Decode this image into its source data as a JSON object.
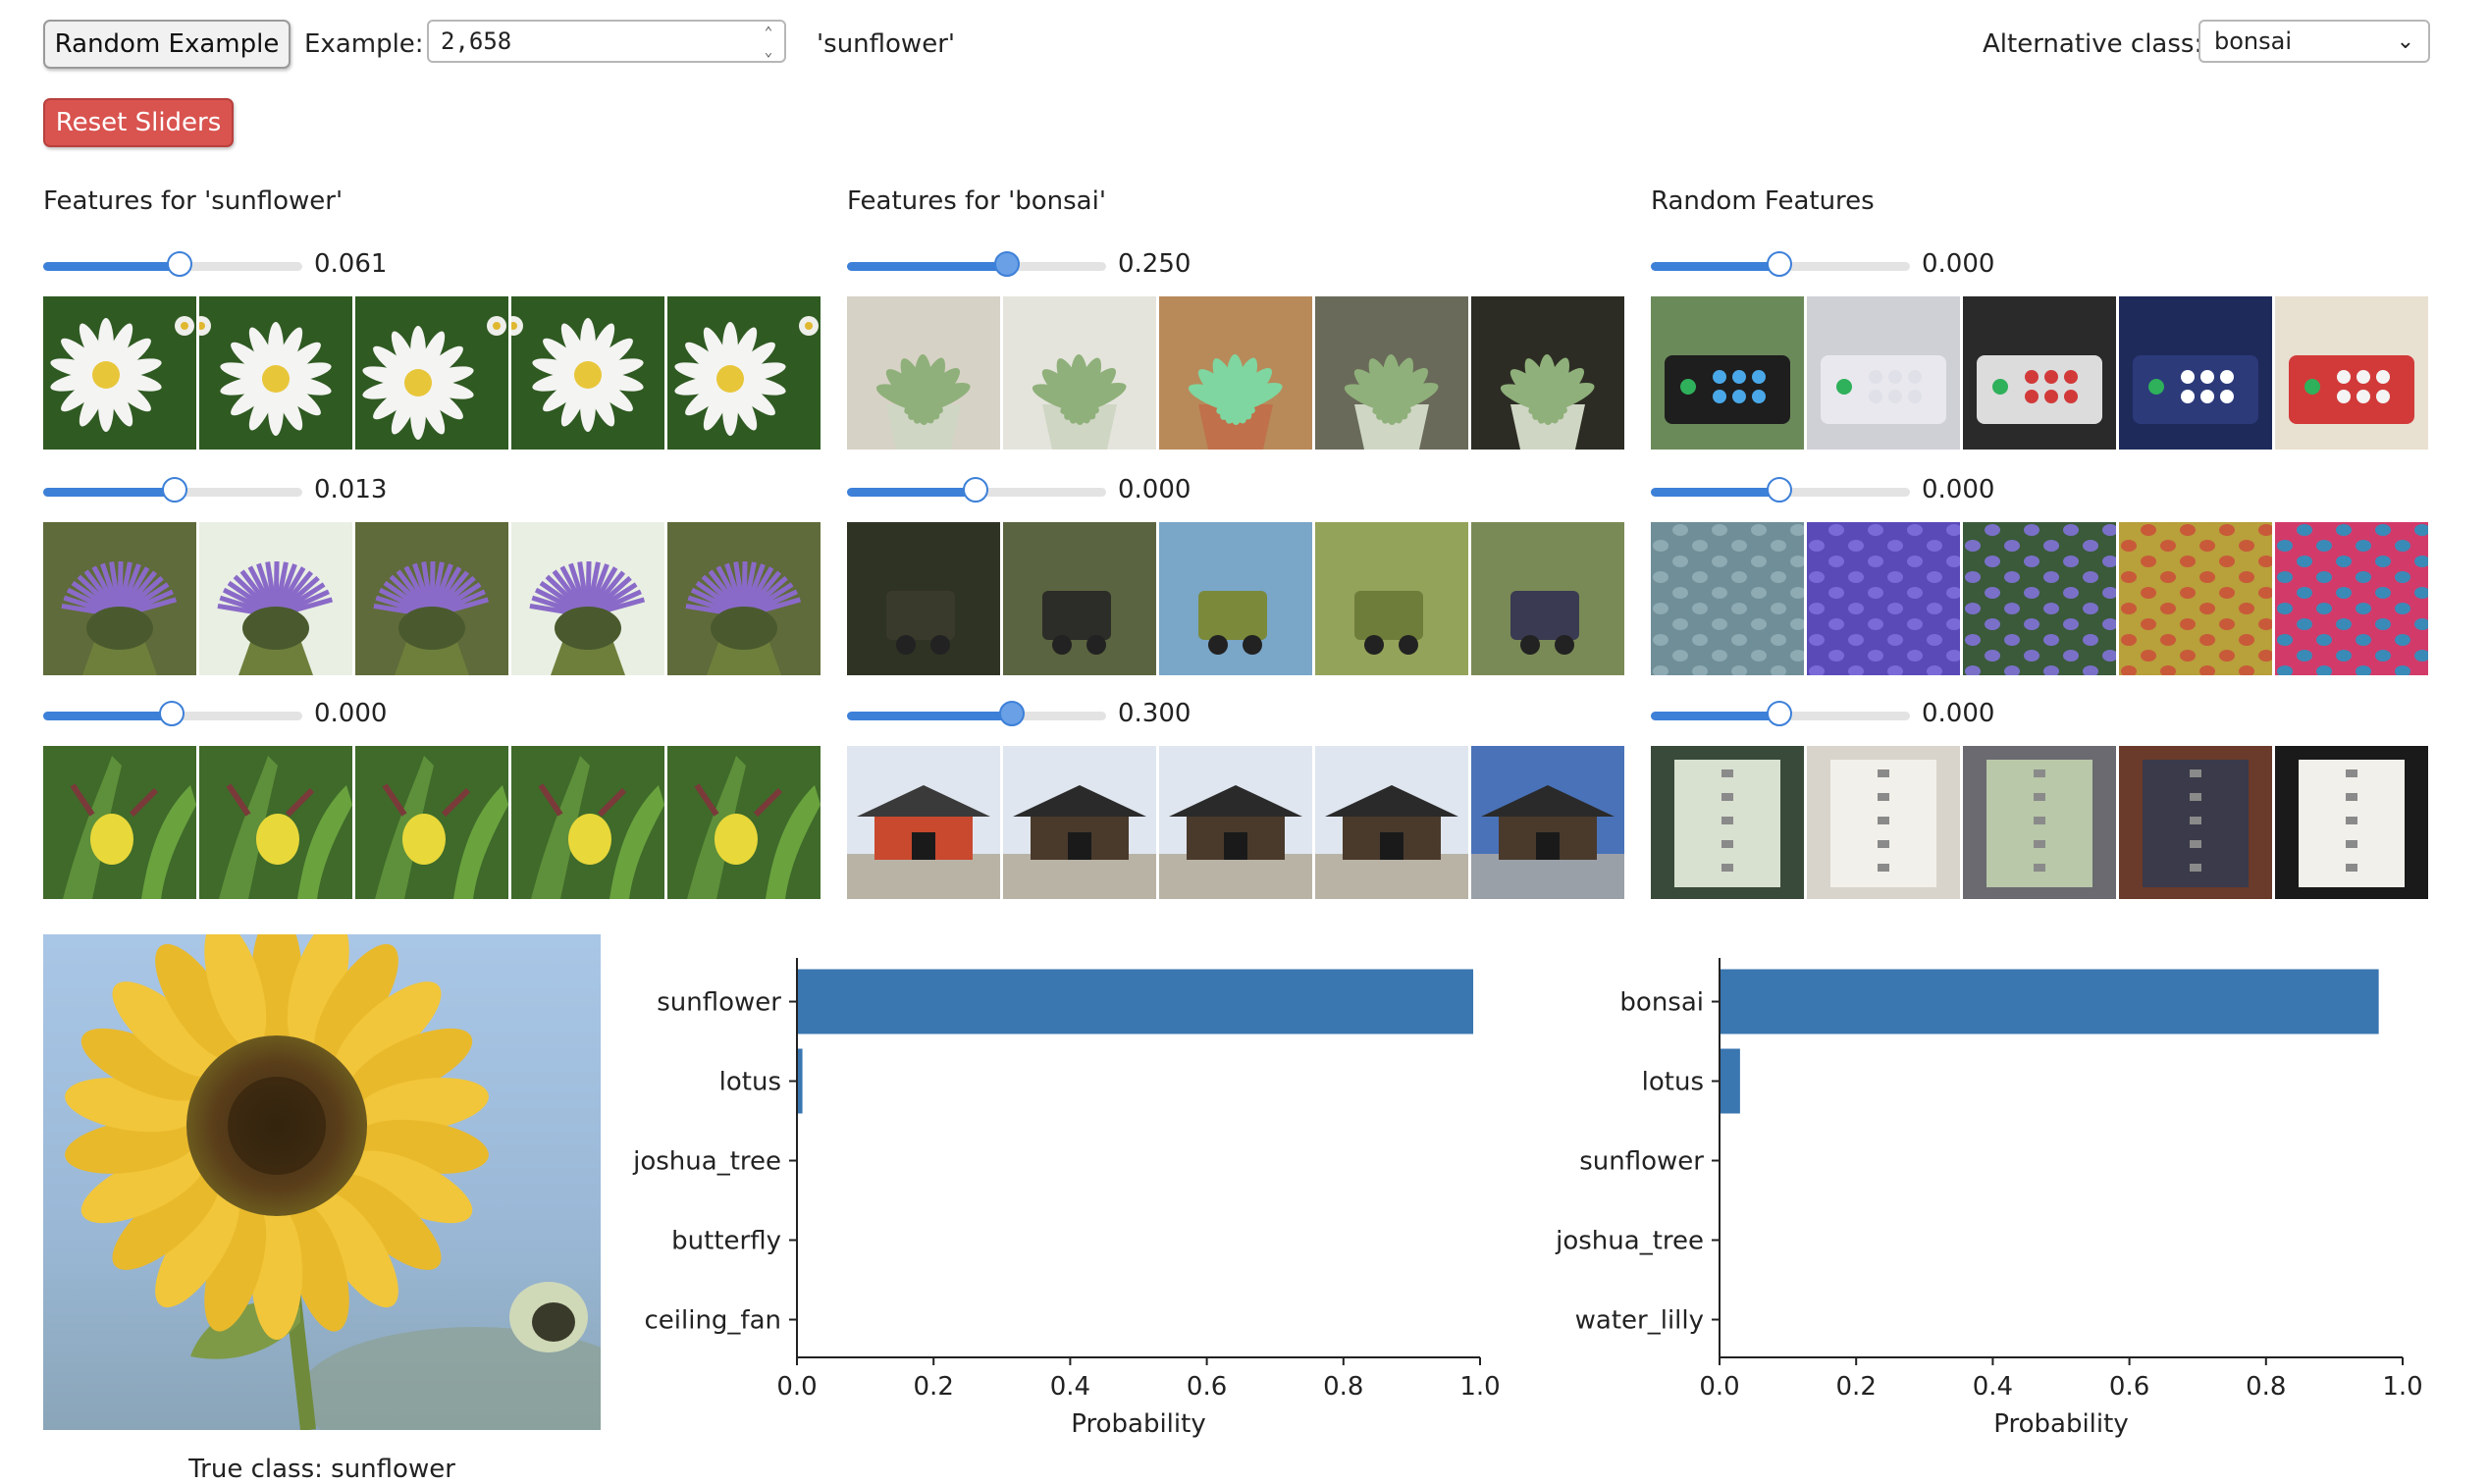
{
  "controls": {
    "random_button": "Random Example",
    "example_label": "Example:",
    "example_value": "2,658",
    "current_class": "'sunflower'",
    "alt_class_label": "Alternative class:",
    "alt_class_value": "bonsai",
    "reset_button": "Reset Sliders"
  },
  "columns": [
    {
      "title": "Features for 'sunflower'",
      "features": [
        {
          "value": 0.061,
          "label": "0.061",
          "slider_fraction": 0.53,
          "tiles": [
            "daisy",
            "daisy",
            "daisy",
            "daisy",
            "daisy"
          ]
        },
        {
          "value": 0.013,
          "label": "0.013",
          "slider_fraction": 0.51,
          "tiles": [
            "thistle",
            "thistle",
            "thistle",
            "thistle",
            "thistle"
          ]
        },
        {
          "value": 0.0,
          "label": "0.000",
          "slider_fraction": 0.5,
          "tiles": [
            "orchid",
            "orchid",
            "orchid",
            "orchid",
            "orchid"
          ]
        }
      ]
    },
    {
      "title": "Features for 'bonsai'",
      "features": [
        {
          "value": 0.25,
          "label": "0.250",
          "slider_fraction": 0.62,
          "tiles": [
            "succulent",
            "succulent",
            "succulent",
            "succulent",
            "succulent"
          ]
        },
        {
          "value": 0.0,
          "label": "0.000",
          "slider_fraction": 0.5,
          "tiles": [
            "miniature",
            "miniature",
            "miniature",
            "miniature",
            "miniature"
          ]
        },
        {
          "value": 0.3,
          "label": "0.300",
          "slider_fraction": 0.64,
          "tiles": [
            "temple",
            "temple",
            "temple",
            "temple",
            "temple"
          ]
        }
      ]
    },
    {
      "title": "Random Features",
      "features": [
        {
          "value": 0.0,
          "label": "0.000",
          "slider_fraction": 0.5,
          "tiles": [
            "arcade",
            "arcade",
            "arcade",
            "arcade",
            "arcade"
          ]
        },
        {
          "value": 0.0,
          "label": "0.000",
          "slider_fraction": 0.5,
          "tiles": [
            "knit",
            "knit",
            "knit",
            "knit",
            "knit"
          ]
        },
        {
          "value": 0.0,
          "label": "0.000",
          "slider_fraction": 0.5,
          "tiles": [
            "binder",
            "binder",
            "binder",
            "binder",
            "binder"
          ]
        }
      ]
    }
  ],
  "example_image": {
    "subject": "sunflower",
    "caption": "True class: sunflower"
  },
  "chart_data": [
    {
      "type": "bar",
      "orientation": "horizontal",
      "categories": [
        "sunflower",
        "lotus",
        "joshua_tree",
        "butterfly",
        "ceiling_fan"
      ],
      "values": [
        0.99,
        0.008,
        0.0,
        0.0,
        0.0
      ],
      "xlabel": "Probability",
      "xlim": [
        0.0,
        1.0
      ],
      "xticks": [
        "0.0",
        "0.2",
        "0.4",
        "0.6",
        "0.8",
        "1.0"
      ],
      "color": "#3a76b0"
    },
    {
      "type": "bar",
      "orientation": "horizontal",
      "categories": [
        "bonsai",
        "lotus",
        "sunflower",
        "joshua_tree",
        "water_lilly"
      ],
      "values": [
        0.965,
        0.03,
        0.0,
        0.0,
        0.0
      ],
      "xlabel": "Probability",
      "xlim": [
        0.0,
        1.0
      ],
      "xticks": [
        "0.0",
        "0.2",
        "0.4",
        "0.6",
        "0.8",
        "1.0"
      ],
      "color": "#3a76b0"
    }
  ]
}
